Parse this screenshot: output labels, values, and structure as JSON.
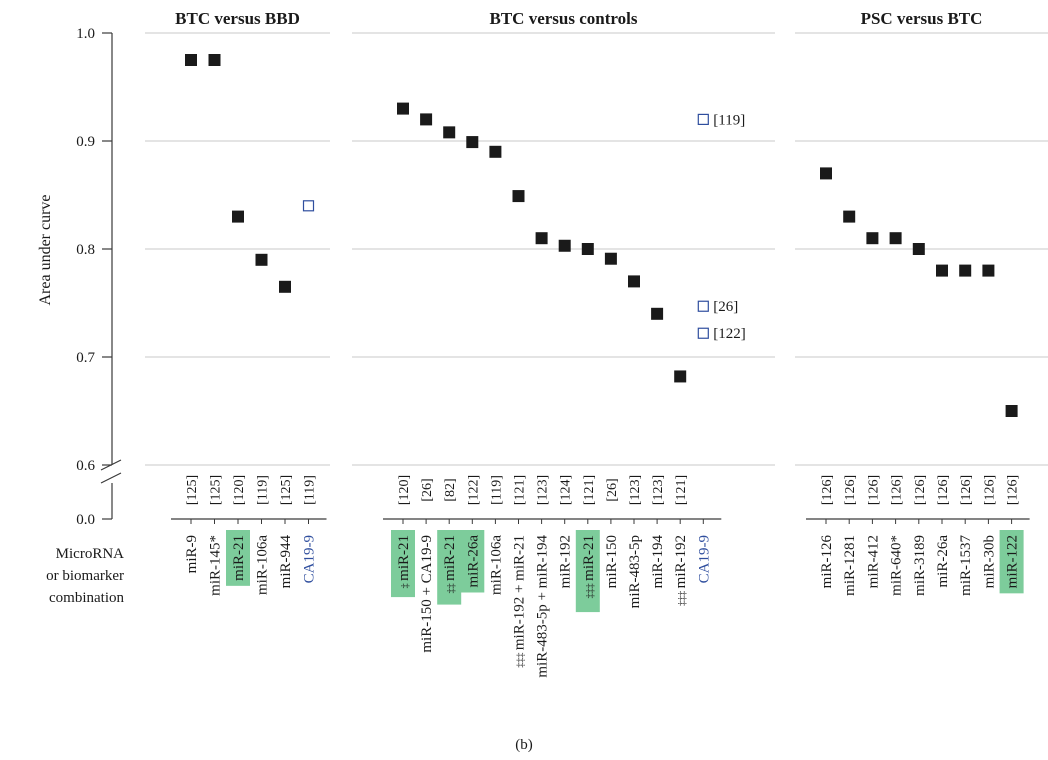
{
  "colors": {
    "marker": "#1a1a1a",
    "highlight": "#7dcc9b",
    "biomarker_text": "#2f4e9e",
    "open_marker_stroke": "#2f4e9e",
    "gridline": "#c8c8c8"
  },
  "ylabel": "Area under curve",
  "yticks": [
    "1.0",
    "0.9",
    "0.8",
    "0.7",
    "0.6"
  ],
  "zero_tick": "0.0",
  "row_label_lines": [
    "MicroRNA",
    "or biomarker",
    "combination"
  ],
  "caption": "(b)",
  "chart_data": [
    {
      "type": "scatter",
      "title": "BTC versus BBD",
      "ylim": [
        0.6,
        1.0
      ],
      "grid": true,
      "points": [
        {
          "label": "miR-9",
          "prefix": "",
          "ref": "[125]",
          "value": 0.975,
          "open": false,
          "highlight": false
        },
        {
          "label": "miR-145*",
          "prefix": "",
          "ref": "[125]",
          "value": 0.975,
          "open": false,
          "highlight": false
        },
        {
          "label": "miR-21",
          "prefix": "",
          "ref": "[120]",
          "value": 0.83,
          "open": false,
          "highlight": true
        },
        {
          "label": "miR-106a",
          "prefix": "",
          "ref": "[119]",
          "value": 0.79,
          "open": false,
          "highlight": false
        },
        {
          "label": "miR-944",
          "prefix": "",
          "ref": "[125]",
          "value": 0.765,
          "open": false,
          "highlight": false
        },
        {
          "label": "CA19-9",
          "prefix": "",
          "ref": "[119]",
          "value": 0.84,
          "open": true,
          "highlight": false,
          "biomarker": true
        }
      ],
      "annotations": []
    },
    {
      "type": "scatter",
      "title": "BTC versus controls",
      "ylim": [
        0.6,
        1.0
      ],
      "grid": true,
      "points": [
        {
          "label": "miR-21",
          "prefix": "‡",
          "ref": "[120]",
          "value": 0.93,
          "open": false,
          "highlight": true
        },
        {
          "label": "miR-150 + CA19-9",
          "prefix": "",
          "ref": "[26]",
          "value": 0.92,
          "open": false,
          "highlight": false
        },
        {
          "label": "miR-21",
          "prefix": "‡‡",
          "ref": "[82]",
          "value": 0.908,
          "open": false,
          "highlight": true
        },
        {
          "label": "miR-26a",
          "prefix": "",
          "ref": "[122]",
          "value": 0.899,
          "open": false,
          "highlight": true
        },
        {
          "label": "miR-106a",
          "prefix": "",
          "ref": "[119]",
          "value": 0.89,
          "open": false,
          "highlight": false
        },
        {
          "label": "miR-192 + miR-21",
          "prefix": "‡‡‡",
          "ref": "[121]",
          "value": 0.849,
          "open": false,
          "highlight": false
        },
        {
          "label": "miR-483-5p + miR-194",
          "prefix": "",
          "ref": "[123]",
          "value": 0.81,
          "open": false,
          "highlight": false
        },
        {
          "label": "miR-192",
          "prefix": "",
          "ref": "[124]",
          "value": 0.803,
          "open": false,
          "highlight": false
        },
        {
          "label": "miR-21",
          "prefix": "‡‡‡",
          "ref": "[121]",
          "value": 0.8,
          "open": false,
          "highlight": true
        },
        {
          "label": "miR-150",
          "prefix": "",
          "ref": "[26]",
          "value": 0.791,
          "open": false,
          "highlight": false
        },
        {
          "label": "miR-483-5p",
          "prefix": "",
          "ref": "[123]",
          "value": 0.77,
          "open": false,
          "highlight": false
        },
        {
          "label": "miR-194",
          "prefix": "",
          "ref": "[123]",
          "value": 0.74,
          "open": false,
          "highlight": false
        },
        {
          "label": "miR-192",
          "prefix": "‡‡‡",
          "ref": "[121]",
          "value": 0.682,
          "open": false,
          "highlight": false
        },
        {
          "label": "CA19-9",
          "prefix": "",
          "ref": "",
          "value": null,
          "open": true,
          "highlight": false,
          "biomarker": true
        }
      ],
      "annotations": [
        {
          "value": 0.92,
          "ref": "[119]"
        },
        {
          "value": 0.747,
          "ref": "[26]"
        },
        {
          "value": 0.722,
          "ref": "[122]"
        }
      ]
    },
    {
      "type": "scatter",
      "title": "PSC versus BTC",
      "ylim": [
        0.6,
        1.0
      ],
      "grid": true,
      "points": [
        {
          "label": "miR-126",
          "prefix": "",
          "ref": "[126]",
          "value": 0.87,
          "open": false,
          "highlight": false
        },
        {
          "label": "miR-1281",
          "prefix": "",
          "ref": "[126]",
          "value": 0.83,
          "open": false,
          "highlight": false
        },
        {
          "label": "miR-412",
          "prefix": "",
          "ref": "[126]",
          "value": 0.81,
          "open": false,
          "highlight": false
        },
        {
          "label": "miR-640*",
          "prefix": "",
          "ref": "[126]",
          "value": 0.81,
          "open": false,
          "highlight": false
        },
        {
          "label": "miR-3189",
          "prefix": "",
          "ref": "[126]",
          "value": 0.8,
          "open": false,
          "highlight": false
        },
        {
          "label": "miR-26a",
          "prefix": "",
          "ref": "[126]",
          "value": 0.78,
          "open": false,
          "highlight": false
        },
        {
          "label": "miR-1537",
          "prefix": "",
          "ref": "[126]",
          "value": 0.78,
          "open": false,
          "highlight": false
        },
        {
          "label": "miR-30b",
          "prefix": "",
          "ref": "[126]",
          "value": 0.78,
          "open": false,
          "highlight": false
        },
        {
          "label": "miR-122",
          "prefix": "",
          "ref": "[126]",
          "value": 0.65,
          "open": false,
          "highlight": true
        }
      ],
      "annotations": []
    }
  ]
}
